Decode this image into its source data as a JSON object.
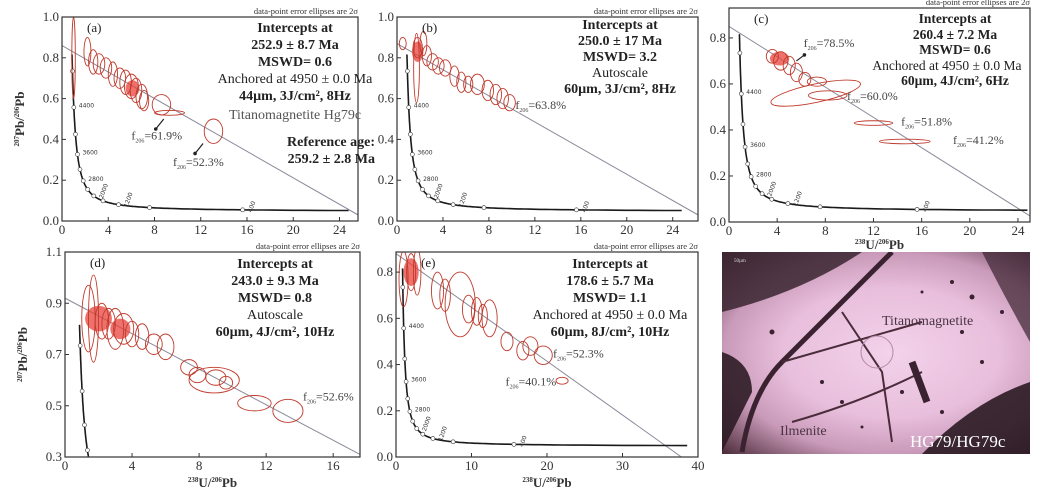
{
  "colors": {
    "ellipse": "#c0392b",
    "ellipse_fill": "#e8413a",
    "concordia": "#1a1a1a",
    "discordia": "#8a8a9a",
    "axis": "#333333"
  },
  "common": {
    "ellipse_note": "data-point error ellipses are 2σ",
    "ylabel": {
      "sup1": "207",
      "t1": "Pb/",
      "sup2": "206",
      "t2": "Pb"
    },
    "xlabel": {
      "sup1": "238",
      "t1": "U/",
      "sup2": "206",
      "t2": "Pb"
    },
    "concordia_ages": [
      "400",
      "1200",
      "2000",
      "2800",
      "3600",
      "4400"
    ]
  },
  "chart_data": [
    {
      "type": "scatter",
      "panel": "(a)",
      "xlim": [
        0,
        25.6
      ],
      "ylim": [
        0,
        1.0
      ],
      "xticks": [
        0,
        4,
        8,
        12,
        16,
        20,
        24
      ],
      "yticks": [
        "0.0",
        "0.2",
        "0.4",
        "0.6",
        "0.8",
        "1.0"
      ],
      "ylabel_shown": true,
      "xlabel_shown": false,
      "info": [
        "Intercepts at",
        "252.9 ± 8.7 Ma",
        "MSWD= 0.6",
        "Anchored at 4950 ± 0.0 Ma",
        "44µm, 3J/cm², 8Hz"
      ],
      "extra": [
        "Titanomagnetite Hg79c",
        "Reference age:",
        "259.2 ± 2.8 Ma"
      ],
      "discordia": [
        [
          0,
          0.86
        ],
        [
          25.6,
          0.03
        ]
      ],
      "annotations": [
        {
          "f": "f",
          "sub": "206",
          "val": "=61.9%"
        },
        {
          "f": "f",
          "sub": "206",
          "val": "=52.3%"
        }
      ],
      "ellipses": [
        [
          1.0,
          0.8,
          0.15,
          0.2,
          0
        ],
        [
          2.2,
          0.83,
          0.3,
          0.07,
          0
        ],
        [
          2.7,
          0.78,
          0.4,
          0.06,
          0
        ],
        [
          3.2,
          0.77,
          0.5,
          0.05,
          0
        ],
        [
          3.8,
          0.75,
          0.5,
          0.05,
          0
        ],
        [
          4.4,
          0.72,
          0.4,
          0.06,
          0
        ],
        [
          5.0,
          0.7,
          0.5,
          0.05,
          0
        ],
        [
          5.5,
          0.68,
          0.5,
          0.06,
          0
        ],
        [
          6.0,
          0.66,
          0.6,
          0.06,
          0
        ],
        [
          6.4,
          0.64,
          0.5,
          0.06,
          0
        ],
        [
          6.9,
          0.61,
          0.5,
          0.06,
          0
        ],
        [
          7.1,
          0.59,
          0.4,
          0.05,
          0
        ],
        [
          8.6,
          0.57,
          0.8,
          0.05,
          0
        ],
        [
          9.3,
          0.53,
          1.3,
          0.012,
          0
        ],
        [
          13.1,
          0.44,
          0.8,
          0.06,
          0
        ]
      ],
      "filled": [
        [
          6.1,
          0.65,
          0.6,
          0.04
        ]
      ]
    },
    {
      "type": "scatter",
      "panel": "(b)",
      "xlim": [
        0,
        26.2
      ],
      "ylim": [
        0,
        1.0
      ],
      "xticks": [
        0,
        4,
        8,
        12,
        16,
        20,
        24
      ],
      "yticks": [
        "0.0",
        "0.2",
        "0.4",
        "0.6",
        "0.8",
        "1.0"
      ],
      "ylabel_shown": false,
      "xlabel_shown": false,
      "info": [
        "Intercepts at",
        "250.0 ± 17 Ma",
        "MSWD= 3.2",
        "Autoscale",
        "60µm, 3J/cm², 8Hz"
      ],
      "discordia": [
        [
          0,
          0.87
        ],
        [
          26.2,
          0.03
        ]
      ],
      "annotations": [
        {
          "f": "f",
          "sub": "206",
          "val": "=63.8%"
        }
      ],
      "ellipses": [
        [
          0.5,
          0.87,
          0.3,
          0.03,
          0
        ],
        [
          1.7,
          0.75,
          0.25,
          0.17,
          0
        ],
        [
          1.8,
          0.85,
          0.4,
          0.05,
          0
        ],
        [
          2.3,
          0.87,
          0.3,
          0.06,
          0
        ],
        [
          2.6,
          0.81,
          0.4,
          0.05,
          0
        ],
        [
          3.1,
          0.78,
          0.5,
          0.04,
          0
        ],
        [
          3.6,
          0.76,
          0.5,
          0.04,
          0
        ],
        [
          4.2,
          0.75,
          0.5,
          0.04,
          0
        ],
        [
          5.0,
          0.71,
          0.4,
          0.05,
          0
        ],
        [
          5.6,
          0.68,
          0.4,
          0.05,
          0
        ],
        [
          6.2,
          0.67,
          0.4,
          0.04,
          0
        ],
        [
          7.0,
          0.67,
          0.6,
          0.05,
          0
        ],
        [
          7.9,
          0.64,
          0.5,
          0.05,
          0
        ],
        [
          8.6,
          0.62,
          0.5,
          0.05,
          0
        ],
        [
          9.2,
          0.6,
          0.5,
          0.05,
          0
        ],
        [
          9.8,
          0.58,
          0.5,
          0.04,
          0
        ]
      ],
      "filled": [
        [
          1.8,
          0.83,
          0.5,
          0.05
        ]
      ]
    },
    {
      "type": "scatter",
      "panel": "(c)",
      "xlim": [
        0,
        25
      ],
      "ylim": [
        0,
        0.93
      ],
      "xticks": [
        0,
        4,
        8,
        12,
        16,
        20,
        24
      ],
      "yticks": [
        "0.0",
        "0.2",
        "0.4",
        "0.6",
        "0.8"
      ],
      "ylabel_shown": false,
      "xlabel_shown": true,
      "info": [
        "Intercepts at",
        "260.4 ± 7.2 Ma",
        "MSWD= 0.6",
        "Anchored at 4950 ± 0.0 Ma",
        "60µm, 4J/cm², 6Hz"
      ],
      "discordia": [
        [
          0,
          0.85
        ],
        [
          25.8,
          0.0
        ]
      ],
      "annotations": [
        {
          "f": "f",
          "sub": "206",
          "val": "=78.5%"
        },
        {
          "f": "f",
          "sub": "206",
          "val": "=60.0%"
        },
        {
          "f": "f",
          "sub": "206",
          "val": "=51.8%"
        },
        {
          "f": "f",
          "sub": "206",
          "val": "=41.2%"
        }
      ],
      "ellipses": [
        [
          3.6,
          0.72,
          0.5,
          0.03,
          0
        ],
        [
          4.3,
          0.7,
          0.6,
          0.04,
          0
        ],
        [
          5.0,
          0.68,
          0.5,
          0.04,
          0
        ],
        [
          5.6,
          0.65,
          0.5,
          0.04,
          0
        ],
        [
          6.3,
          0.62,
          0.5,
          0.03,
          0
        ],
        [
          7.3,
          0.61,
          0.8,
          0.02,
          0
        ],
        [
          7.2,
          0.56,
          3.8,
          0.04,
          -12
        ],
        [
          8.2,
          0.55,
          1.6,
          0.02,
          0
        ],
        [
          12.0,
          0.43,
          1.6,
          0.01,
          0
        ],
        [
          14.6,
          0.35,
          2.1,
          0.01,
          0
        ]
      ],
      "filled": [
        [
          4.2,
          0.71,
          0.8,
          0.03
        ]
      ]
    },
    {
      "type": "scatter",
      "panel": "(d)",
      "xlim": [
        0,
        17.6
      ],
      "ylim": [
        0.3,
        1.1
      ],
      "xticks": [
        0,
        4,
        8,
        12,
        16
      ],
      "yticks": [
        "0.3",
        "0.5",
        "0.7",
        "0.9",
        "1.1"
      ],
      "ylabel_shown": true,
      "xlabel_shown": true,
      "info": [
        "Intercepts at",
        "243.0 ± 9.3 Ma",
        "MSWD= 0.8",
        "Autoscale",
        "60µm, 4J/cm², 10Hz"
      ],
      "discordia": [
        [
          0,
          0.92
        ],
        [
          17.6,
          0.31
        ]
      ],
      "annotations": [
        {
          "f": "f",
          "sub": "206",
          "val": "=52.6%"
        }
      ],
      "ellipses": [
        [
          1.4,
          0.84,
          0.4,
          0.13,
          0
        ],
        [
          1.7,
          0.84,
          0.3,
          0.17,
          0
        ],
        [
          2.2,
          0.83,
          0.4,
          0.07,
          0
        ],
        [
          2.6,
          0.82,
          0.4,
          0.06,
          0
        ],
        [
          3.0,
          0.8,
          0.5,
          0.08,
          0
        ],
        [
          3.5,
          0.8,
          0.6,
          0.06,
          0
        ],
        [
          4.0,
          0.78,
          0.4,
          0.05,
          0
        ],
        [
          4.6,
          0.77,
          0.4,
          0.05,
          0
        ],
        [
          5.3,
          0.74,
          0.5,
          0.04,
          0
        ],
        [
          6.0,
          0.73,
          0.5,
          0.05,
          0
        ],
        [
          7.4,
          0.65,
          0.5,
          0.03,
          0
        ],
        [
          7.9,
          0.62,
          0.5,
          0.03,
          0
        ],
        [
          8.9,
          0.6,
          1.5,
          0.05,
          0
        ],
        [
          9.0,
          0.61,
          0.6,
          0.03,
          0
        ],
        [
          9.6,
          0.59,
          0.4,
          0.025,
          0
        ],
        [
          11.3,
          0.51,
          1.0,
          0.03,
          0
        ],
        [
          13.3,
          0.48,
          0.9,
          0.045,
          0
        ]
      ],
      "filled": [
        [
          2.0,
          0.84,
          0.8,
          0.05
        ],
        [
          3.3,
          0.8,
          0.6,
          0.04
        ]
      ]
    },
    {
      "type": "scatter",
      "panel": "(e)",
      "xlim": [
        0,
        40
      ],
      "ylim": [
        0,
        0.887
      ],
      "xticks": [
        0,
        10,
        20,
        30,
        40
      ],
      "yticks": [
        "0.0",
        "0.2",
        "0.4",
        "0.6",
        "0.8"
      ],
      "ylabel_shown": false,
      "xlabel_shown": true,
      "info": [
        "Intercepts at",
        "178.6 ± 5.7 Ma",
        "MSWD= 1.1",
        "Anchored at 4950 ± 0.0 Ma",
        "60µm, 8J/cm², 10Hz"
      ],
      "discordia": [
        [
          0,
          0.88
        ],
        [
          37.8,
          0.0
        ]
      ],
      "annotations": [
        {
          "f": "f",
          "sub": "206",
          "val": "=52.3%"
        },
        {
          "f": "f",
          "sub": "206",
          "val": "=40.1%"
        }
      ],
      "ellipses": [
        [
          1.0,
          0.77,
          0.6,
          0.12,
          0
        ],
        [
          2.0,
          0.8,
          0.6,
          0.08,
          0
        ],
        [
          2.8,
          0.8,
          0.5,
          0.1,
          0
        ],
        [
          5.5,
          0.72,
          0.8,
          0.08,
          0
        ],
        [
          6.5,
          0.7,
          0.7,
          0.07,
          0
        ],
        [
          8.5,
          0.66,
          2.0,
          0.14,
          0
        ],
        [
          9.6,
          0.64,
          0.8,
          0.06,
          0
        ],
        [
          10.7,
          0.63,
          0.7,
          0.06,
          0
        ],
        [
          11.5,
          0.61,
          0.6,
          0.05,
          0
        ],
        [
          12.4,
          0.6,
          1.0,
          0.08,
          0
        ],
        [
          14.7,
          0.5,
          0.8,
          0.04,
          0
        ],
        [
          16.8,
          0.46,
          0.8,
          0.04,
          0
        ],
        [
          17.8,
          0.48,
          1.0,
          0.04,
          0
        ],
        [
          19.5,
          0.44,
          1.2,
          0.04,
          0
        ],
        [
          22.0,
          0.33,
          0.8,
          0.015,
          0
        ]
      ],
      "filled": [
        [
          2.0,
          0.8,
          1.0,
          0.06
        ]
      ]
    }
  ],
  "photo": {
    "labels": [
      "Titanomagnetite",
      "Ilmenite",
      "HG79/HG79c"
    ],
    "scale_text": "50µm"
  }
}
